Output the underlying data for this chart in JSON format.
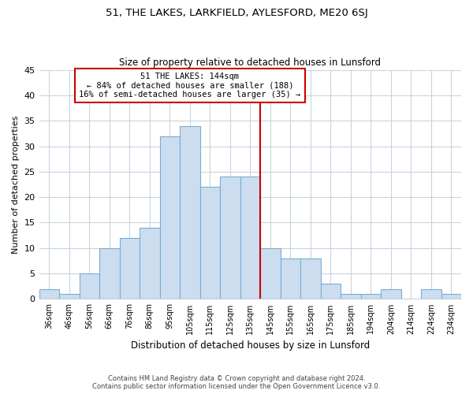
{
  "title": "51, THE LAKES, LARKFIELD, AYLESFORD, ME20 6SJ",
  "subtitle": "Size of property relative to detached houses in Lunsford",
  "xlabel": "Distribution of detached houses by size in Lunsford",
  "ylabel": "Number of detached properties",
  "bin_labels": [
    "36sqm",
    "46sqm",
    "56sqm",
    "66sqm",
    "76sqm",
    "86sqm",
    "95sqm",
    "105sqm",
    "115sqm",
    "125sqm",
    "135sqm",
    "145sqm",
    "155sqm",
    "165sqm",
    "175sqm",
    "185sqm",
    "194sqm",
    "204sqm",
    "214sqm",
    "224sqm",
    "234sqm"
  ],
  "bar_heights": [
    2,
    1,
    5,
    10,
    12,
    14,
    32,
    34,
    22,
    24,
    24,
    10,
    8,
    8,
    3,
    1,
    1,
    2,
    0,
    2,
    1
  ],
  "bar_color": "#ccddf0",
  "bar_edge_color": "#7aadd4",
  "vline_value": 144,
  "vline_color": "#cc0000",
  "annotation_title": "51 THE LAKES: 144sqm",
  "annotation_line1": "← 84% of detached houses are smaller (188)",
  "annotation_line2": "16% of semi-detached houses are larger (35) →",
  "annotation_box_color": "#ffffff",
  "annotation_box_edge_color": "#cc0000",
  "footer_line1": "Contains HM Land Registry data © Crown copyright and database right 2024.",
  "footer_line2": "Contains public sector information licensed under the Open Government Licence v3.0.",
  "ylim": [
    0,
    45
  ],
  "yticks": [
    0,
    5,
    10,
    15,
    20,
    25,
    30,
    35,
    40,
    45
  ],
  "background_color": "#ffffff",
  "grid_color": "#c8d4e0"
}
